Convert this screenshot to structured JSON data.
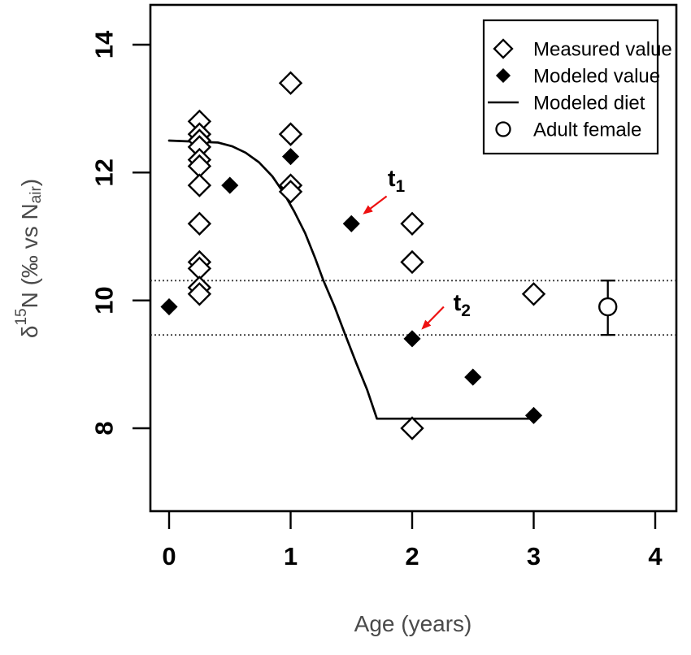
{
  "axes": {
    "x": {
      "label": "Age (years)",
      "ticks": [
        "0",
        "1",
        "2",
        "3",
        "4"
      ],
      "tick_values": [
        0,
        1,
        2,
        3,
        4
      ],
      "range": [
        -0.15,
        4.17
      ]
    },
    "y": {
      "label_parts": {
        "prefix": "δ",
        "sup": "15",
        "mid": "N (‰ vs N",
        "sub": "air",
        "suffix": ")"
      },
      "ticks": [
        "8",
        "10",
        "12",
        "14"
      ],
      "tick_values": [
        8,
        10,
        12,
        14
      ],
      "range": [
        6.7,
        14.6
      ]
    }
  },
  "legend": {
    "items": [
      {
        "symbol": "open-diamond",
        "label": "Measured value"
      },
      {
        "symbol": "filled-diamond",
        "label": "Modeled value"
      },
      {
        "symbol": "line",
        "label": "Modeled diet"
      },
      {
        "symbol": "circle",
        "label": "Adult female"
      }
    ]
  },
  "chart_data": {
    "type": "scatter",
    "xlabel": "Age (years)",
    "ylabel": "d15N (permil vs N_air)",
    "xlim": [
      -0.15,
      4.17
    ],
    "ylim": [
      6.7,
      14.6
    ],
    "grid": false,
    "legend_position": "top-right",
    "series": [
      {
        "name": "Measured value",
        "marker": "open-diamond",
        "points": [
          [
            0.25,
            12.8
          ],
          [
            0.25,
            12.6
          ],
          [
            0.25,
            12.5
          ],
          [
            0.25,
            12.4
          ],
          [
            0.25,
            12.2
          ],
          [
            0.25,
            12.1
          ],
          [
            0.25,
            11.8
          ],
          [
            0.25,
            11.2
          ],
          [
            0.25,
            10.6
          ],
          [
            0.25,
            10.5
          ],
          [
            0.25,
            10.2
          ],
          [
            0.25,
            10.1
          ],
          [
            1,
            13.4
          ],
          [
            1,
            12.6
          ],
          [
            1,
            11.8
          ],
          [
            1,
            11.7
          ],
          [
            2,
            11.2
          ],
          [
            2,
            10.6
          ],
          [
            2,
            8.0
          ],
          [
            3,
            10.1
          ]
        ]
      },
      {
        "name": "Modeled value",
        "marker": "filled-diamond",
        "points": [
          [
            0,
            9.9
          ],
          [
            0.5,
            11.8
          ],
          [
            1,
            12.25
          ],
          [
            1.5,
            11.2
          ],
          [
            2,
            9.4
          ],
          [
            2.5,
            8.8
          ],
          [
            3,
            8.2
          ]
        ]
      }
    ],
    "modeled_diet_line": [
      [
        0,
        12.5
      ],
      [
        0.4,
        12.47
      ],
      [
        0.52,
        12.41
      ],
      [
        0.63,
        12.31
      ],
      [
        0.74,
        12.16
      ],
      [
        0.85,
        11.94
      ],
      [
        0.94,
        11.69
      ],
      [
        1.03,
        11.39
      ],
      [
        1.12,
        11.05
      ],
      [
        1.2,
        10.67
      ],
      [
        1.27,
        10.31
      ],
      [
        1.36,
        9.91
      ],
      [
        1.45,
        9.46
      ],
      [
        1.54,
        9.02
      ],
      [
        1.63,
        8.6
      ],
      [
        1.71,
        8.15
      ],
      [
        3,
        8.15
      ]
    ],
    "dotted_lines_y": [
      10.31,
      9.46
    ],
    "adult_female": {
      "x": 3.61,
      "y": 9.9,
      "err_low": 9.46,
      "err_high": 10.31
    },
    "annotations": [
      {
        "base": "t",
        "sub": "1",
        "label_at": [
          1.87,
          11.9
        ],
        "arrow_from": [
          1.79,
          11.63
        ],
        "arrow_to": [
          1.61,
          11.37
        ]
      },
      {
        "base": "t",
        "sub": "2",
        "label_at": [
          2.41,
          9.96
        ],
        "arrow_from": [
          2.26,
          9.9
        ],
        "arrow_to": [
          2.09,
          9.57
        ]
      }
    ]
  },
  "colors": {
    "marker": "#000000",
    "arrow": "#ee1111",
    "axis_title": "#4a4a4a",
    "dotted_line": "#3c3c3c"
  }
}
